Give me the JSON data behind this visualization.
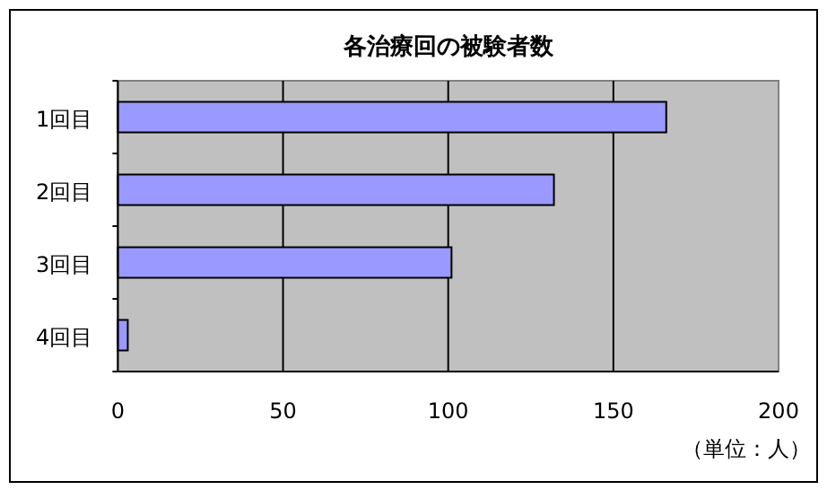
{
  "chart_data": {
    "type": "bar",
    "orientation": "horizontal",
    "title": "各治療回の被験者数",
    "categories": [
      "1回目",
      "2回目",
      "3回目",
      "4回目"
    ],
    "values": [
      166,
      132,
      101,
      3
    ],
    "color": "#9999ff",
    "xlim": [
      0,
      200
    ],
    "xticks": [
      0,
      50,
      100,
      150,
      200
    ],
    "grid": "x",
    "annotations": [
      "（単位：人）"
    ]
  }
}
